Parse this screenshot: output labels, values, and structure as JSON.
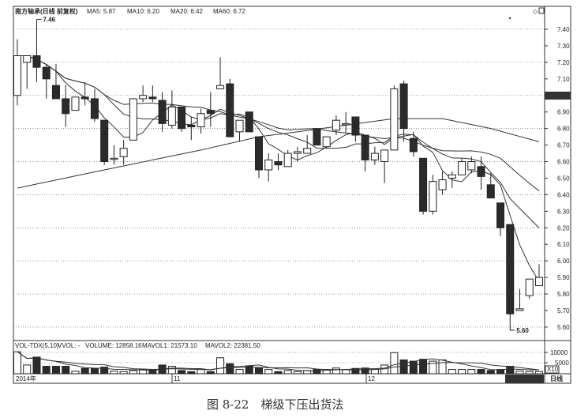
{
  "header": {
    "title": "南方轴承(日线 前复权)",
    "ma5": "MA5: 5.87",
    "ma10": "MA10: 6.20",
    "ma20": "MA20: 6.42",
    "ma60": "MA60: 6.72"
  },
  "volume_header": {
    "name": "VOL-TDX(5,10)",
    "vvol": "VVOL: -",
    "volume": "VOLUME: 12858.16",
    "mavol1": "MAVOL1: 21573.10",
    "mavol2": "MAVOL2: 22381.50"
  },
  "axis": {
    "period_label": "日线",
    "vol_unit": "X10",
    "x_labels": [
      "2014年",
      "11",
      "12"
    ]
  },
  "caption": "图 8-22　梯级下压出货法",
  "colors": {
    "up": "#ffffff",
    "down": "#2b2b2b",
    "line": "#333333",
    "grid": "#555555"
  },
  "chart_data": {
    "type": "candlestick",
    "y_ticks": [
      "7.40",
      "7.30",
      "7.20",
      "7.10",
      "7.00",
      "6.90",
      "6.80",
      "6.70",
      "6.60",
      "6.50",
      "6.40",
      "6.30",
      "6.20",
      "6.10",
      "6.00",
      "5.90",
      "5.80",
      "5.70",
      "5.60"
    ],
    "ylim": [
      5.56,
      7.52
    ],
    "vol_ticks": [
      "10000",
      "5000"
    ],
    "vol_ylim": [
      0,
      13000
    ],
    "annotations": [
      {
        "label": "7.46",
        "candle": 3,
        "price": 7.46
      },
      {
        "label": "5.60",
        "candle": 52,
        "price": 5.6
      }
    ],
    "candles": [
      [
        7.0,
        7.34,
        6.94,
        7.24
      ],
      [
        7.2,
        7.24,
        7.04,
        7.24
      ],
      [
        7.24,
        7.46,
        7.08,
        7.17
      ],
      [
        7.17,
        7.19,
        6.98,
        7.1
      ],
      [
        7.06,
        7.19,
        6.98,
        6.98
      ],
      [
        6.98,
        7.06,
        6.81,
        6.89
      ],
      [
        6.91,
        6.99,
        6.91,
        6.99
      ],
      [
        6.99,
        7.08,
        6.94,
        6.98
      ],
      [
        6.98,
        7.04,
        6.84,
        6.86
      ],
      [
        6.85,
        6.85,
        6.58,
        6.6
      ],
      [
        6.62,
        6.7,
        6.58,
        6.62
      ],
      [
        6.63,
        6.73,
        6.58,
        6.68
      ],
      [
        6.73,
        6.98,
        6.73,
        6.98
      ],
      [
        6.98,
        7.06,
        6.96,
        7.0
      ],
      [
        6.99,
        7.06,
        6.96,
        6.98
      ],
      [
        6.97,
        7.02,
        6.78,
        6.83
      ],
      [
        6.82,
        7.03,
        6.8,
        6.93
      ],
      [
        6.93,
        6.93,
        6.78,
        6.8
      ],
      [
        6.82,
        6.87,
        6.73,
        6.81
      ],
      [
        6.81,
        6.92,
        6.77,
        6.89
      ],
      [
        6.91,
        7.02,
        6.81,
        6.89
      ],
      [
        7.04,
        7.23,
        7.04,
        7.06
      ],
      [
        7.07,
        7.1,
        6.75,
        6.75
      ],
      [
        6.78,
        6.85,
        6.72,
        6.85
      ],
      [
        6.9,
        6.9,
        6.78,
        6.78
      ],
      [
        6.75,
        6.75,
        6.5,
        6.55
      ],
      [
        6.55,
        6.65,
        6.48,
        6.61
      ],
      [
        6.6,
        6.65,
        6.55,
        6.58
      ],
      [
        6.57,
        6.67,
        6.57,
        6.65
      ],
      [
        6.65,
        6.69,
        6.6,
        6.66
      ],
      [
        6.65,
        6.76,
        6.65,
        6.68
      ],
      [
        6.8,
        6.8,
        6.7,
        6.7
      ],
      [
        6.69,
        6.75,
        6.68,
        6.75
      ],
      [
        6.79,
        6.88,
        6.76,
        6.85
      ],
      [
        6.83,
        6.9,
        6.77,
        6.83
      ],
      [
        6.87,
        6.87,
        6.72,
        6.76
      ],
      [
        6.76,
        6.76,
        6.54,
        6.61
      ],
      [
        6.61,
        6.69,
        6.58,
        6.65
      ],
      [
        6.6,
        6.67,
        6.47,
        6.67
      ],
      [
        6.67,
        7.06,
        6.67,
        7.04
      ],
      [
        7.07,
        7.09,
        6.72,
        6.8
      ],
      [
        6.74,
        6.78,
        6.63,
        6.66
      ],
      [
        6.62,
        6.62,
        6.28,
        6.3
      ],
      [
        6.3,
        6.52,
        6.28,
        6.48
      ],
      [
        6.43,
        6.54,
        6.4,
        6.49
      ],
      [
        6.5,
        6.54,
        6.44,
        6.52
      ],
      [
        6.52,
        6.62,
        6.52,
        6.6
      ],
      [
        6.55,
        6.63,
        6.53,
        6.6
      ],
      [
        6.57,
        6.63,
        6.43,
        6.51
      ],
      [
        6.46,
        6.53,
        6.38,
        6.38
      ],
      [
        6.35,
        6.35,
        6.15,
        6.2
      ],
      [
        6.22,
        6.22,
        5.6,
        5.68
      ],
      [
        5.7,
        5.83,
        5.7,
        5.71
      ],
      [
        5.79,
        5.89,
        5.77,
        5.89
      ],
      [
        5.85,
        5.98,
        5.85,
        5.9
      ]
    ],
    "candle_fields": [
      "open",
      "high",
      "low",
      "close"
    ],
    "volume": [
      10300,
      4100,
      7800,
      3500,
      3500,
      3500,
      1200,
      2500,
      2500,
      3100,
      1200,
      1000,
      1500,
      2000,
      2000,
      4100,
      3500,
      1500,
      1000,
      2000,
      1000,
      7500,
      4700,
      2000,
      3700,
      2700,
      2000,
      1000,
      1500,
      1000,
      1500,
      2000,
      2000,
      2700,
      2000,
      2500,
      2700,
      2000,
      4100,
      9900,
      6500,
      5900,
      6800,
      5900,
      6500,
      2000,
      2000,
      2000,
      2000,
      1500,
      2000,
      3500,
      1200,
      1000,
      1000
    ],
    "ma60_anchors": [
      [
        1,
        6.44
      ],
      [
        10,
        6.55
      ],
      [
        20,
        6.67
      ],
      [
        26,
        6.75
      ],
      [
        30,
        6.78
      ],
      [
        35,
        6.82
      ],
      [
        40,
        6.86
      ],
      [
        45,
        6.86
      ],
      [
        50,
        6.8
      ],
      [
        55,
        6.72
      ]
    ]
  }
}
